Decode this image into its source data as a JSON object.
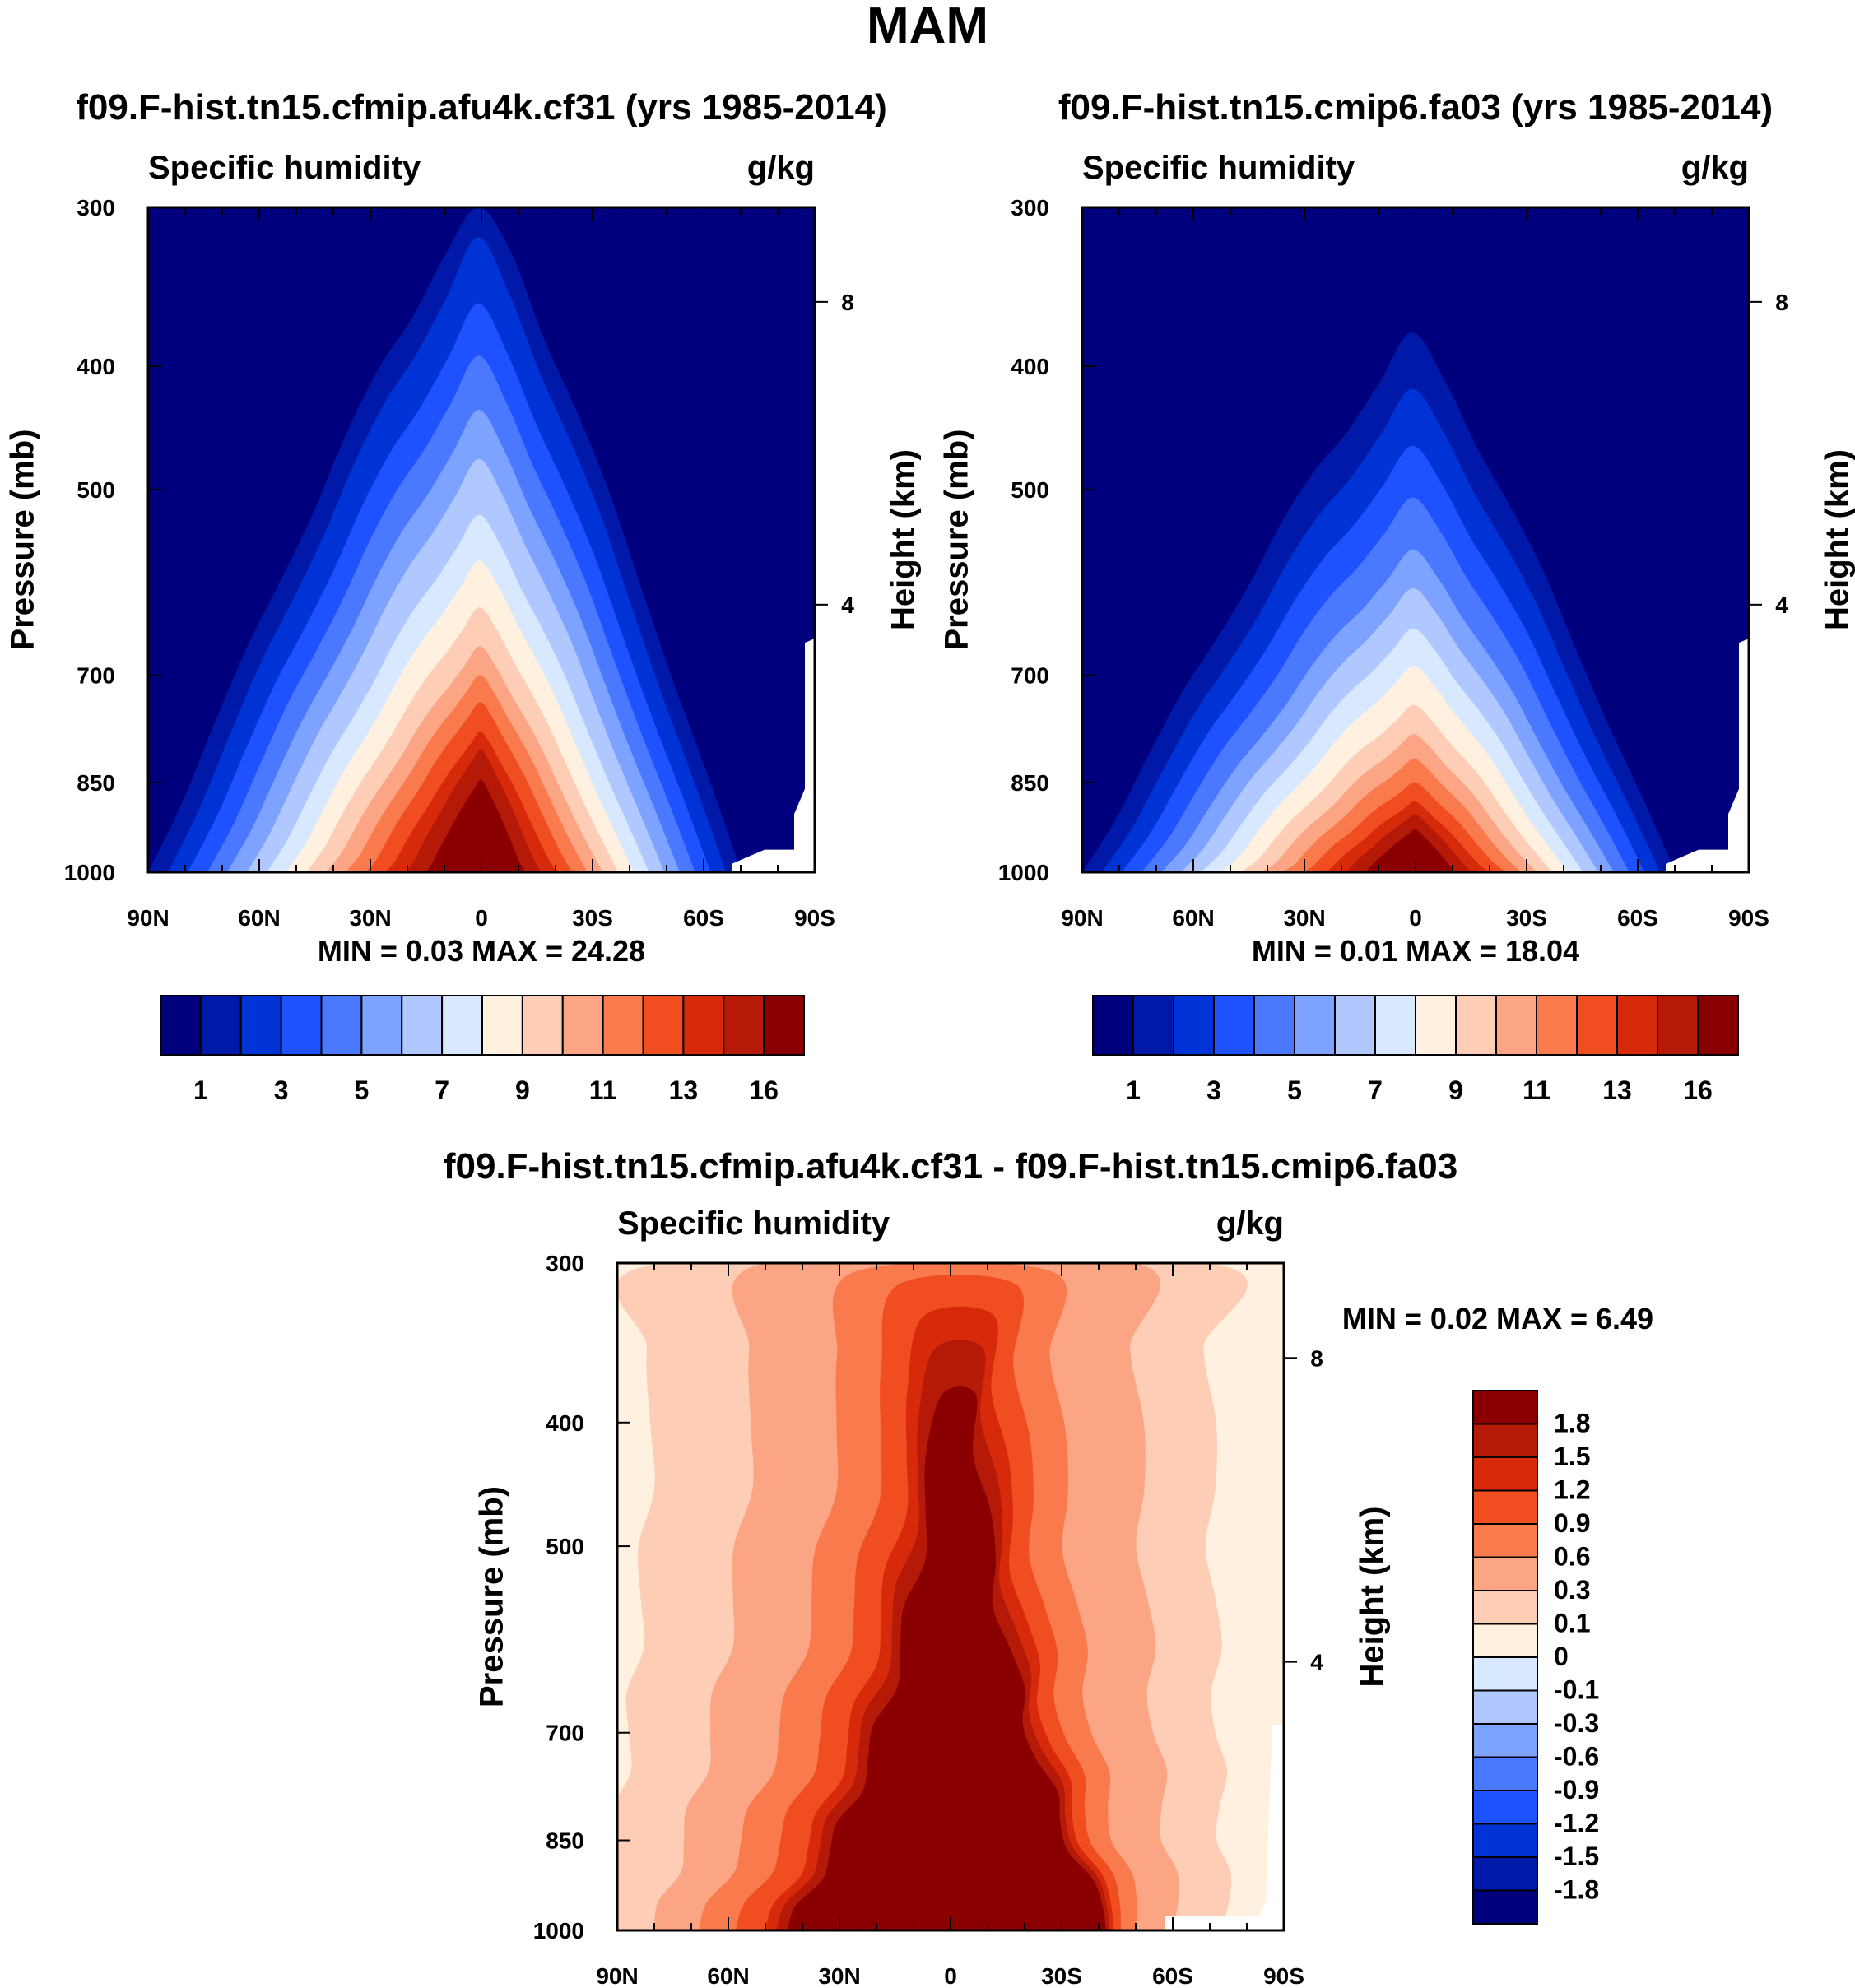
{
  "figure": {
    "title": "MAM",
    "colors": {
      "top_scale": [
        "#00007f",
        "#0019a8",
        "#0033d6",
        "#1f52ff",
        "#4a79ff",
        "#7ea2ff",
        "#b0c8ff",
        "#d8e9ff",
        "#fff0e0",
        "#fdcdb5",
        "#fba584",
        "#f97a4d",
        "#f04d21",
        "#d62a0b",
        "#b51a08",
        "#8a0000"
      ],
      "diff_scale": [
        "#00007f",
        "#0019a8",
        "#0033d6",
        "#1f52ff",
        "#4a79ff",
        "#7ea2ff",
        "#b0c8ff",
        "#d8e9ff",
        "#fff0e0",
        "#fdcdb5",
        "#fba584",
        "#f97a4d",
        "#f04d21",
        "#d62a0b",
        "#b51a08",
        "#8a0000"
      ]
    }
  },
  "chart_data": [
    {
      "id": "panel-left",
      "type": "heatmap",
      "kind": "pressure-latitude contour (filled)",
      "title": "f09.F-hist.tn15.cfmip.afu4k.cf31 (yrs 1985-2014)",
      "left_label": "Specific humidity",
      "right_label": "g/kg",
      "ylabel": "Pressure (mb)",
      "y2label": "Height (km)",
      "x_ticks": [
        "90N",
        "60N",
        "30N",
        "0",
        "30S",
        "60S",
        "90S"
      ],
      "x_values": [
        90,
        60,
        30,
        0,
        -30,
        -60,
        -90
      ],
      "y_ticks": [
        300,
        400,
        500,
        700,
        850,
        1000
      ],
      "y_tick_labels": [
        "300",
        "400",
        "500",
        "700",
        "850",
        "1000"
      ],
      "y2_ticks": [
        8,
        4
      ],
      "y2_tick_labels": [
        "8",
        "4"
      ],
      "ylim": [
        1000,
        300
      ],
      "min_label": "MIN =",
      "min_value": "0.03",
      "max_label": "MAX =",
      "max_value": "24.28",
      "colorbar_labels": [
        "1",
        "3",
        "5",
        "7",
        "9",
        "11",
        "13",
        "16"
      ],
      "contour_levels": [
        0.5,
        1,
        2,
        3,
        4,
        5,
        6,
        7,
        8,
        9,
        10,
        11,
        12,
        13,
        14,
        16
      ],
      "equator_peak_pressure": [
        295,
        320,
        360,
        395,
        435,
        475,
        525,
        570,
        620,
        665,
        700,
        735,
        775,
        800,
        845
      ]
    },
    {
      "id": "panel-right",
      "type": "heatmap",
      "kind": "pressure-latitude contour (filled)",
      "title": "f09.F-hist.tn15.cmip6.fa03 (yrs 1985-2014)",
      "left_label": "Specific humidity",
      "right_label": "g/kg",
      "ylabel": "Pressure (mb)",
      "y2label": "Height (km)",
      "x_ticks": [
        "90N",
        "60N",
        "30N",
        "0",
        "30S",
        "60S",
        "90S"
      ],
      "x_values": [
        90,
        60,
        30,
        0,
        -30,
        -60,
        -90
      ],
      "y_ticks": [
        300,
        400,
        500,
        700,
        850,
        1000
      ],
      "y_tick_labels": [
        "300",
        "400",
        "500",
        "700",
        "850",
        "1000"
      ],
      "y2_ticks": [
        8,
        4
      ],
      "y2_tick_labels": [
        "8",
        "4"
      ],
      "ylim": [
        1000,
        300
      ],
      "min_label": "MIN =",
      "min_value": "0.01",
      "max_label": "MAX =",
      "max_value": "18.04",
      "colorbar_labels": [
        "1",
        "3",
        "5",
        "7",
        "9",
        "11",
        "13",
        "16"
      ],
      "contour_levels": [
        0.5,
        1,
        2,
        3,
        4,
        5,
        6,
        7,
        8,
        9,
        10,
        11,
        12,
        13,
        14,
        16
      ],
      "equator_peak_pressure": [
        380,
        420,
        465,
        510,
        560,
        600,
        645,
        690,
        740,
        780,
        815,
        850,
        880,
        900,
        925
      ]
    },
    {
      "id": "panel-diff",
      "type": "heatmap",
      "kind": "pressure-latitude contour (filled), difference",
      "title": "f09.F-hist.tn15.cfmip.afu4k.cf31 - f09.F-hist.tn15.cmip6.fa03",
      "left_label": "Specific humidity",
      "right_label": "g/kg",
      "ylabel": "Pressure (mb)",
      "y2label": "Height (km)",
      "x_ticks": [
        "90N",
        "60N",
        "30N",
        "0",
        "30S",
        "60S",
        "90S"
      ],
      "x_values": [
        90,
        60,
        30,
        0,
        -30,
        -60,
        -90
      ],
      "y_ticks": [
        300,
        400,
        500,
        700,
        850,
        1000
      ],
      "y_tick_labels": [
        "300",
        "400",
        "500",
        "700",
        "850",
        "1000"
      ],
      "y2_ticks": [
        8,
        4
      ],
      "y2_tick_labels": [
        "8",
        "4"
      ],
      "ylim": [
        1000,
        300
      ],
      "min_label": "MIN =",
      "min_value": "0.02",
      "max_label": "MAX =",
      "max_value": "6.49",
      "colorbar_labels": [
        "1.8",
        "1.5",
        "1.2",
        "0.9",
        "0.6",
        "0.3",
        "0.1",
        "0",
        "-0.1",
        "-0.3",
        "-0.6",
        "-0.9",
        "-1.2",
        "-1.5",
        "-1.8"
      ],
      "contour_levels": [
        -1.8,
        -1.5,
        -1.2,
        -0.9,
        -0.6,
        -0.3,
        -0.1,
        0,
        0.1,
        0.3,
        0.6,
        0.9,
        1.2,
        1.5,
        1.8
      ]
    }
  ]
}
